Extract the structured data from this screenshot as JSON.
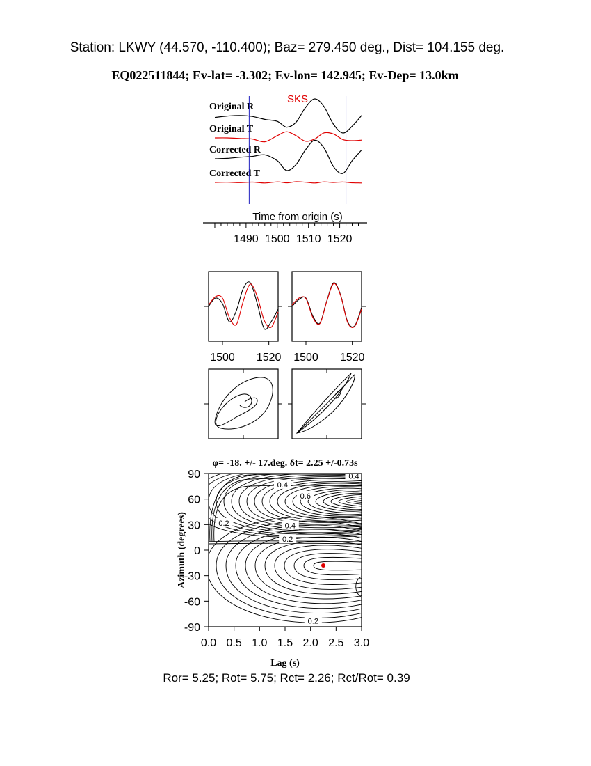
{
  "header": {
    "station_line": "Station: LKWY (44.570, -110.400); Baz=  279.450 deg., Dist=  104.155 deg.",
    "event_line": "EQ022511844; Ev-lat=  -3.302; Ev-lon= 142.945; Ev-Dep= 13.0km"
  },
  "footer": {
    "stats_line": "Ror= 5.25; Rot= 5.75; Rct= 2.26; Rct/Rot= 0.39"
  },
  "colors": {
    "original": "#000000",
    "corrected": "#e00000",
    "window": "#2020c0",
    "best_fit": "#e00000"
  },
  "chart_data": [
    {
      "id": "traces",
      "type": "line",
      "phase_label": "SKS",
      "trace_labels": [
        "Original R",
        "Original T",
        "Corrected R",
        "Corrected T"
      ],
      "xlabel": "Time from origin (s)",
      "xticks": [
        1490,
        1500,
        1510,
        1520
      ],
      "xlim": [
        1478,
        1527
      ],
      "window": [
        1491,
        1522
      ],
      "series": [
        {
          "name": "Original R",
          "color": "#000000",
          "x": [
            1480,
            1484,
            1488,
            1492,
            1496,
            1500,
            1503,
            1506,
            1509,
            1512,
            1515,
            1518,
            1521,
            1524,
            1527
          ],
          "y": [
            0.05,
            0.12,
            0.15,
            0.1,
            -0.05,
            -0.15,
            -0.45,
            -0.2,
            0.55,
            1.0,
            0.6,
            -0.3,
            -0.75,
            -0.4,
            0.15
          ]
        },
        {
          "name": "Original T",
          "color": "#e00000",
          "x": [
            1480,
            1484,
            1488,
            1492,
            1496,
            1500,
            1503,
            1506,
            1509,
            1512,
            1515,
            1518,
            1521,
            1524,
            1527
          ],
          "y": [
            0.0,
            0.0,
            -0.05,
            -0.1,
            -0.35,
            0.2,
            0.55,
            0.2,
            -0.3,
            -0.1,
            0.45,
            0.35,
            -0.15,
            -0.25,
            -0.2
          ]
        },
        {
          "name": "Corrected R",
          "color": "#000000",
          "x": [
            1480,
            1484,
            1488,
            1492,
            1496,
            1500,
            1503,
            1506,
            1509,
            1512,
            1515,
            1518,
            1521,
            1524,
            1527
          ],
          "y": [
            0.0,
            0.02,
            0.08,
            0.12,
            0.2,
            -0.1,
            -0.6,
            -0.3,
            0.45,
            0.95,
            0.55,
            -0.4,
            -0.75,
            -0.1,
            0.45
          ]
        },
        {
          "name": "Corrected T",
          "color": "#e00000",
          "x": [
            1480,
            1484,
            1488,
            1492,
            1496,
            1500,
            1503,
            1506,
            1509,
            1512,
            1515,
            1518,
            1521,
            1524,
            1527
          ],
          "y": [
            0.0,
            0.02,
            -0.02,
            0.03,
            -0.05,
            0.05,
            -0.03,
            0.06,
            0.02,
            -0.05,
            0.05,
            0.0,
            0.04,
            -0.03,
            -0.05
          ]
        }
      ]
    },
    {
      "id": "waveform-original",
      "type": "line",
      "xticks": [
        1500,
        1520
      ],
      "xlim": [
        1494,
        1524
      ],
      "series": [
        {
          "color": "#000000",
          "x": [
            1494,
            1497,
            1500,
            1503,
            1506,
            1509,
            1512,
            1515,
            1518,
            1521,
            1524
          ],
          "y": [
            0.0,
            0.3,
            0.1,
            -0.55,
            -0.15,
            0.65,
            0.85,
            0.1,
            -0.8,
            -0.55,
            -0.1
          ]
        },
        {
          "color": "#e00000",
          "x": [
            1494,
            1497,
            1500,
            1503,
            1506,
            1509,
            1512,
            1515,
            1518,
            1521,
            1524
          ],
          "y": [
            0.05,
            0.35,
            0.3,
            -0.4,
            -0.65,
            0.2,
            0.8,
            0.35,
            -0.5,
            -0.75,
            -0.2
          ]
        }
      ]
    },
    {
      "id": "waveform-corrected",
      "type": "line",
      "xticks": [
        1500,
        1520
      ],
      "xlim": [
        1494,
        1524
      ],
      "series": [
        {
          "color": "#000000",
          "x": [
            1494,
            1497,
            1500,
            1503,
            1506,
            1509,
            1512,
            1515,
            1518,
            1521,
            1524
          ],
          "y": [
            0.0,
            0.25,
            0.3,
            -0.35,
            -0.6,
            0.2,
            0.85,
            0.4,
            -0.55,
            -0.7,
            -0.05
          ]
        },
        {
          "color": "#e00000",
          "x": [
            1494,
            1497,
            1500,
            1503,
            1506,
            1509,
            1512,
            1515,
            1518,
            1521,
            1524
          ],
          "y": [
            0.05,
            0.3,
            0.28,
            -0.4,
            -0.62,
            0.18,
            0.82,
            0.38,
            -0.58,
            -0.72,
            -0.1
          ]
        }
      ]
    },
    {
      "id": "particle-motion-original",
      "type": "scatter",
      "shape": "open ellipse with inward spiral"
    },
    {
      "id": "particle-motion-corrected",
      "type": "scatter",
      "shape": "near-linear ellipse"
    },
    {
      "id": "energy-grid",
      "type": "heatmap",
      "title": "φ= -18. +/- 17.deg. δt= 2.25 +/-0.73s",
      "xlabel": "Lag (s)",
      "ylabel": "Azimuth (degrees)",
      "xlim": [
        0.0,
        3.0
      ],
      "ylim": [
        -90,
        90
      ],
      "xticks": [
        "0.0",
        "0.5",
        "1.0",
        "1.5",
        "2.0",
        "2.5",
        "3.0"
      ],
      "yticks": [
        "90",
        "60",
        "30",
        "0",
        "-30",
        "-60",
        "-90"
      ],
      "contour_labels": [
        {
          "text": "0.4",
          "x": 1.45,
          "y": 77
        },
        {
          "text": "0.6",
          "x": 1.9,
          "y": 64
        },
        {
          "text": "0.4",
          "x": 1.6,
          "y": 29
        },
        {
          "text": "0.2",
          "x": 0.3,
          "y": 32
        },
        {
          "text": "0.2",
          "x": 1.55,
          "y": 13
        },
        {
          "text": "0.4",
          "x": 2.85,
          "y": 87
        },
        {
          "text": "0.2",
          "x": 2.05,
          "y": -83
        }
      ],
      "best_fit": {
        "lag": 2.25,
        "azimuth": -18
      }
    }
  ]
}
